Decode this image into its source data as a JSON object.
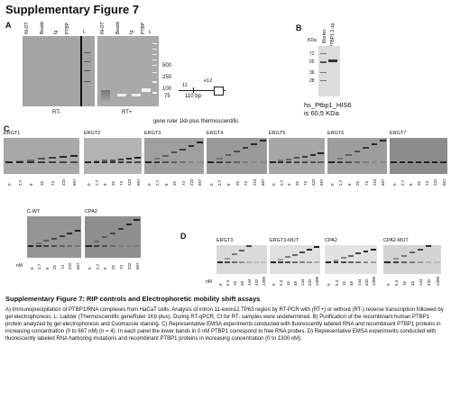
{
  "figure": {
    "title": "Supplementary Figure 7"
  },
  "panel_a": {
    "label": "A",
    "gel1": {
      "lanes": [
        "IN-OT",
        "Beads",
        "Ig",
        "PTBP",
        "L"
      ],
      "bottom_label": "RT-"
    },
    "gel2": {
      "lanes": [
        "IN-OT",
        "Beads",
        "Ig",
        "PTBP",
        "L"
      ],
      "bottom_label": "RT+"
    },
    "ladder": [
      "500",
      "250",
      "100",
      "75"
    ],
    "diagram": {
      "exon1": "11",
      "exon2": "e12",
      "size": "110 bp"
    }
  },
  "panel_b": {
    "label": "B",
    "lanes": [
      "Marker",
      "PTBP1 3 ug"
    ],
    "kda_label": "KDa",
    "markers": [
      "72",
      "55",
      "36",
      "28"
    ],
    "protein": "hs_Ptbp1_HIS6",
    "mass": "is 60,5 KDa"
  },
  "panel_c": {
    "label": "C",
    "header": "gene ruler 1kb plus thermoscientific",
    "nm_label": "nM",
    "concentrations": [
      "0",
      "2.7",
      "8",
      "25",
      "74",
      "222",
      "667"
    ],
    "gels_row1": [
      "ERGT1",
      "ERGT2",
      "ERGT3",
      "ERGT4",
      "ERGT5",
      "ERGT6",
      "ERGT7"
    ],
    "gels_row2": [
      "C-WT",
      "CPA2"
    ]
  },
  "panel_d": {
    "label": "D",
    "nm_label": "nM",
    "concentrations": [
      "0",
      "5.4",
      "16",
      "48",
      "144",
      "432",
      "1300"
    ],
    "gels": [
      "ERGT3",
      "ERGT3-MUT",
      "CPA2",
      "CPA2-MUT"
    ]
  },
  "caption": {
    "title": "Supplementary Figure 7: RIP controls and Electrophoretic mobility shift assays",
    "body": "A) Immunoprecipitation of PTBP1/RNA complexes from HaCaT cells. Analysis of intron 11-exon12 TP63 region by RT-PCR with (RT+) or without (RT-) reverse transcription followed by gel electrophoresis. L: Ladder (Thermoscientific geneRuler 1Kb plus). During RT-qPCR, Ct for RT- samples were undetermined. B) Purification of the recombinant human PTBP1 protein analyzed by gel electrophoresis and Coomassie staining. C) Representative EMSA experiments conducted with fluorescently labeled RNA and recombinant PTBP1 proteins in increasing concentration (0 to 667 nM) (n = 4). In each panel the lower bands in 0 nM PTBP1 correspond to free RNA probes. D) Representative EMSA experiments conducted with fluorescently labeled RNA harboring mutations and recombinant PTBP1 proteins in increasing concentration (0 to 1300 nM)."
  }
}
